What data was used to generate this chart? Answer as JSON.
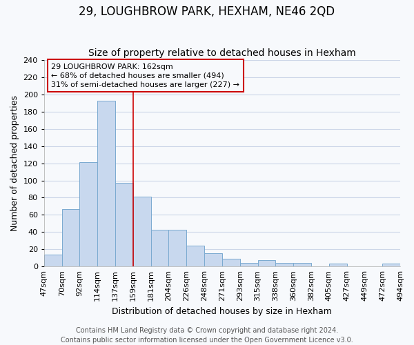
{
  "title": "29, LOUGHBROW PARK, HEXHAM, NE46 2QD",
  "subtitle": "Size of property relative to detached houses in Hexham",
  "xlabel": "Distribution of detached houses by size in Hexham",
  "ylabel": "Number of detached properties",
  "bar_labels": [
    "47sqm",
    "70sqm",
    "92sqm",
    "114sqm",
    "137sqm",
    "159sqm",
    "181sqm",
    "204sqm",
    "226sqm",
    "248sqm",
    "271sqm",
    "293sqm",
    "315sqm",
    "338sqm",
    "360sqm",
    "382sqm",
    "405sqm",
    "427sqm",
    "449sqm",
    "472sqm",
    "494sqm"
  ],
  "bar_values": [
    14,
    67,
    121,
    193,
    97,
    81,
    43,
    43,
    24,
    15,
    9,
    4,
    7,
    4,
    4,
    0,
    3,
    0,
    0,
    3
  ],
  "bar_color": "#c8d8ee",
  "bar_edge_color": "#7aaad0",
  "vline_x_index": 5,
  "vline_color": "#cc0000",
  "annotation_lines": [
    "29 LOUGHBROW PARK: 162sqm",
    "← 68% of detached houses are smaller (494)",
    "31% of semi-detached houses are larger (227) →"
  ],
  "annotation_box_edge": "#cc0000",
  "ylim": [
    0,
    240
  ],
  "yticks": [
    0,
    20,
    40,
    60,
    80,
    100,
    120,
    140,
    160,
    180,
    200,
    220,
    240
  ],
  "footer_lines": [
    "Contains HM Land Registry data © Crown copyright and database right 2024.",
    "Contains public sector information licensed under the Open Government Licence v3.0."
  ],
  "background_color": "#f7f9fc",
  "plot_bg_color": "#f7f9fc",
  "grid_color": "#ccd6e8",
  "title_fontsize": 12,
  "subtitle_fontsize": 10,
  "axis_label_fontsize": 9,
  "tick_fontsize": 8,
  "footer_fontsize": 7
}
